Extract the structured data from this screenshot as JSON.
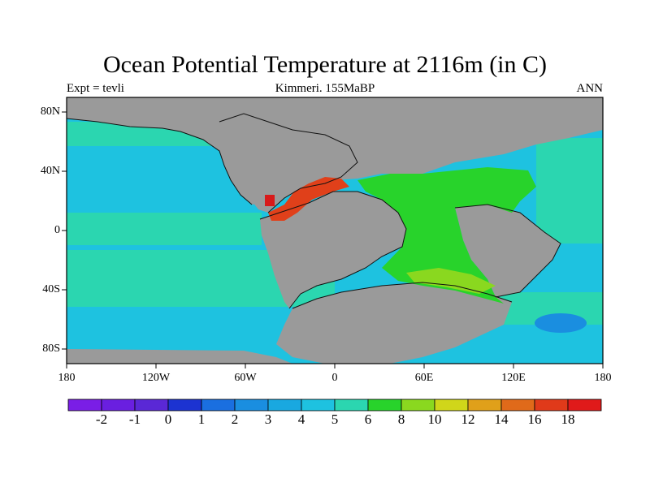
{
  "header": {
    "title": "Ocean Potential Temperature at 2116m (in C)",
    "experiment": "Expt = tevli",
    "subtitle": "Kimmeri. 155MaBP",
    "season": "ANN"
  },
  "axes": {
    "lat_labels": [
      "80N",
      "40N",
      "0",
      "40S",
      "80S"
    ],
    "lon_labels": [
      "180",
      "120W",
      "60W",
      "0",
      "60E",
      "120E",
      "180"
    ]
  },
  "colorbar": {
    "labels": [
      "-2",
      "-1",
      "0",
      "1",
      "2",
      "3",
      "4",
      "5",
      "6",
      "8",
      "10",
      "12",
      "14",
      "16",
      "18"
    ],
    "colors": [
      "#7a1ee6",
      "#6a1fe0",
      "#5a28d6",
      "#1c33d1",
      "#1a6fe0",
      "#1a8ee0",
      "#19a8e0",
      "#1ec2e0",
      "#2bd6b0",
      "#28d32b",
      "#8ad81f",
      "#d0d61a",
      "#e0a01a",
      "#e06a1a",
      "#e03a1a",
      "#e01a1a"
    ]
  },
  "colors": {
    "land": "#9a9a9a",
    "ocean_deep": "#1ec2e0",
    "ocean_mid": "#2bd6b0",
    "warm_basin": "#28d32b",
    "warm_edge": "#8ad81f",
    "hot": "#e0401a",
    "hotter": "#d81a1a",
    "cold_pool": "#1a8ee0"
  }
}
